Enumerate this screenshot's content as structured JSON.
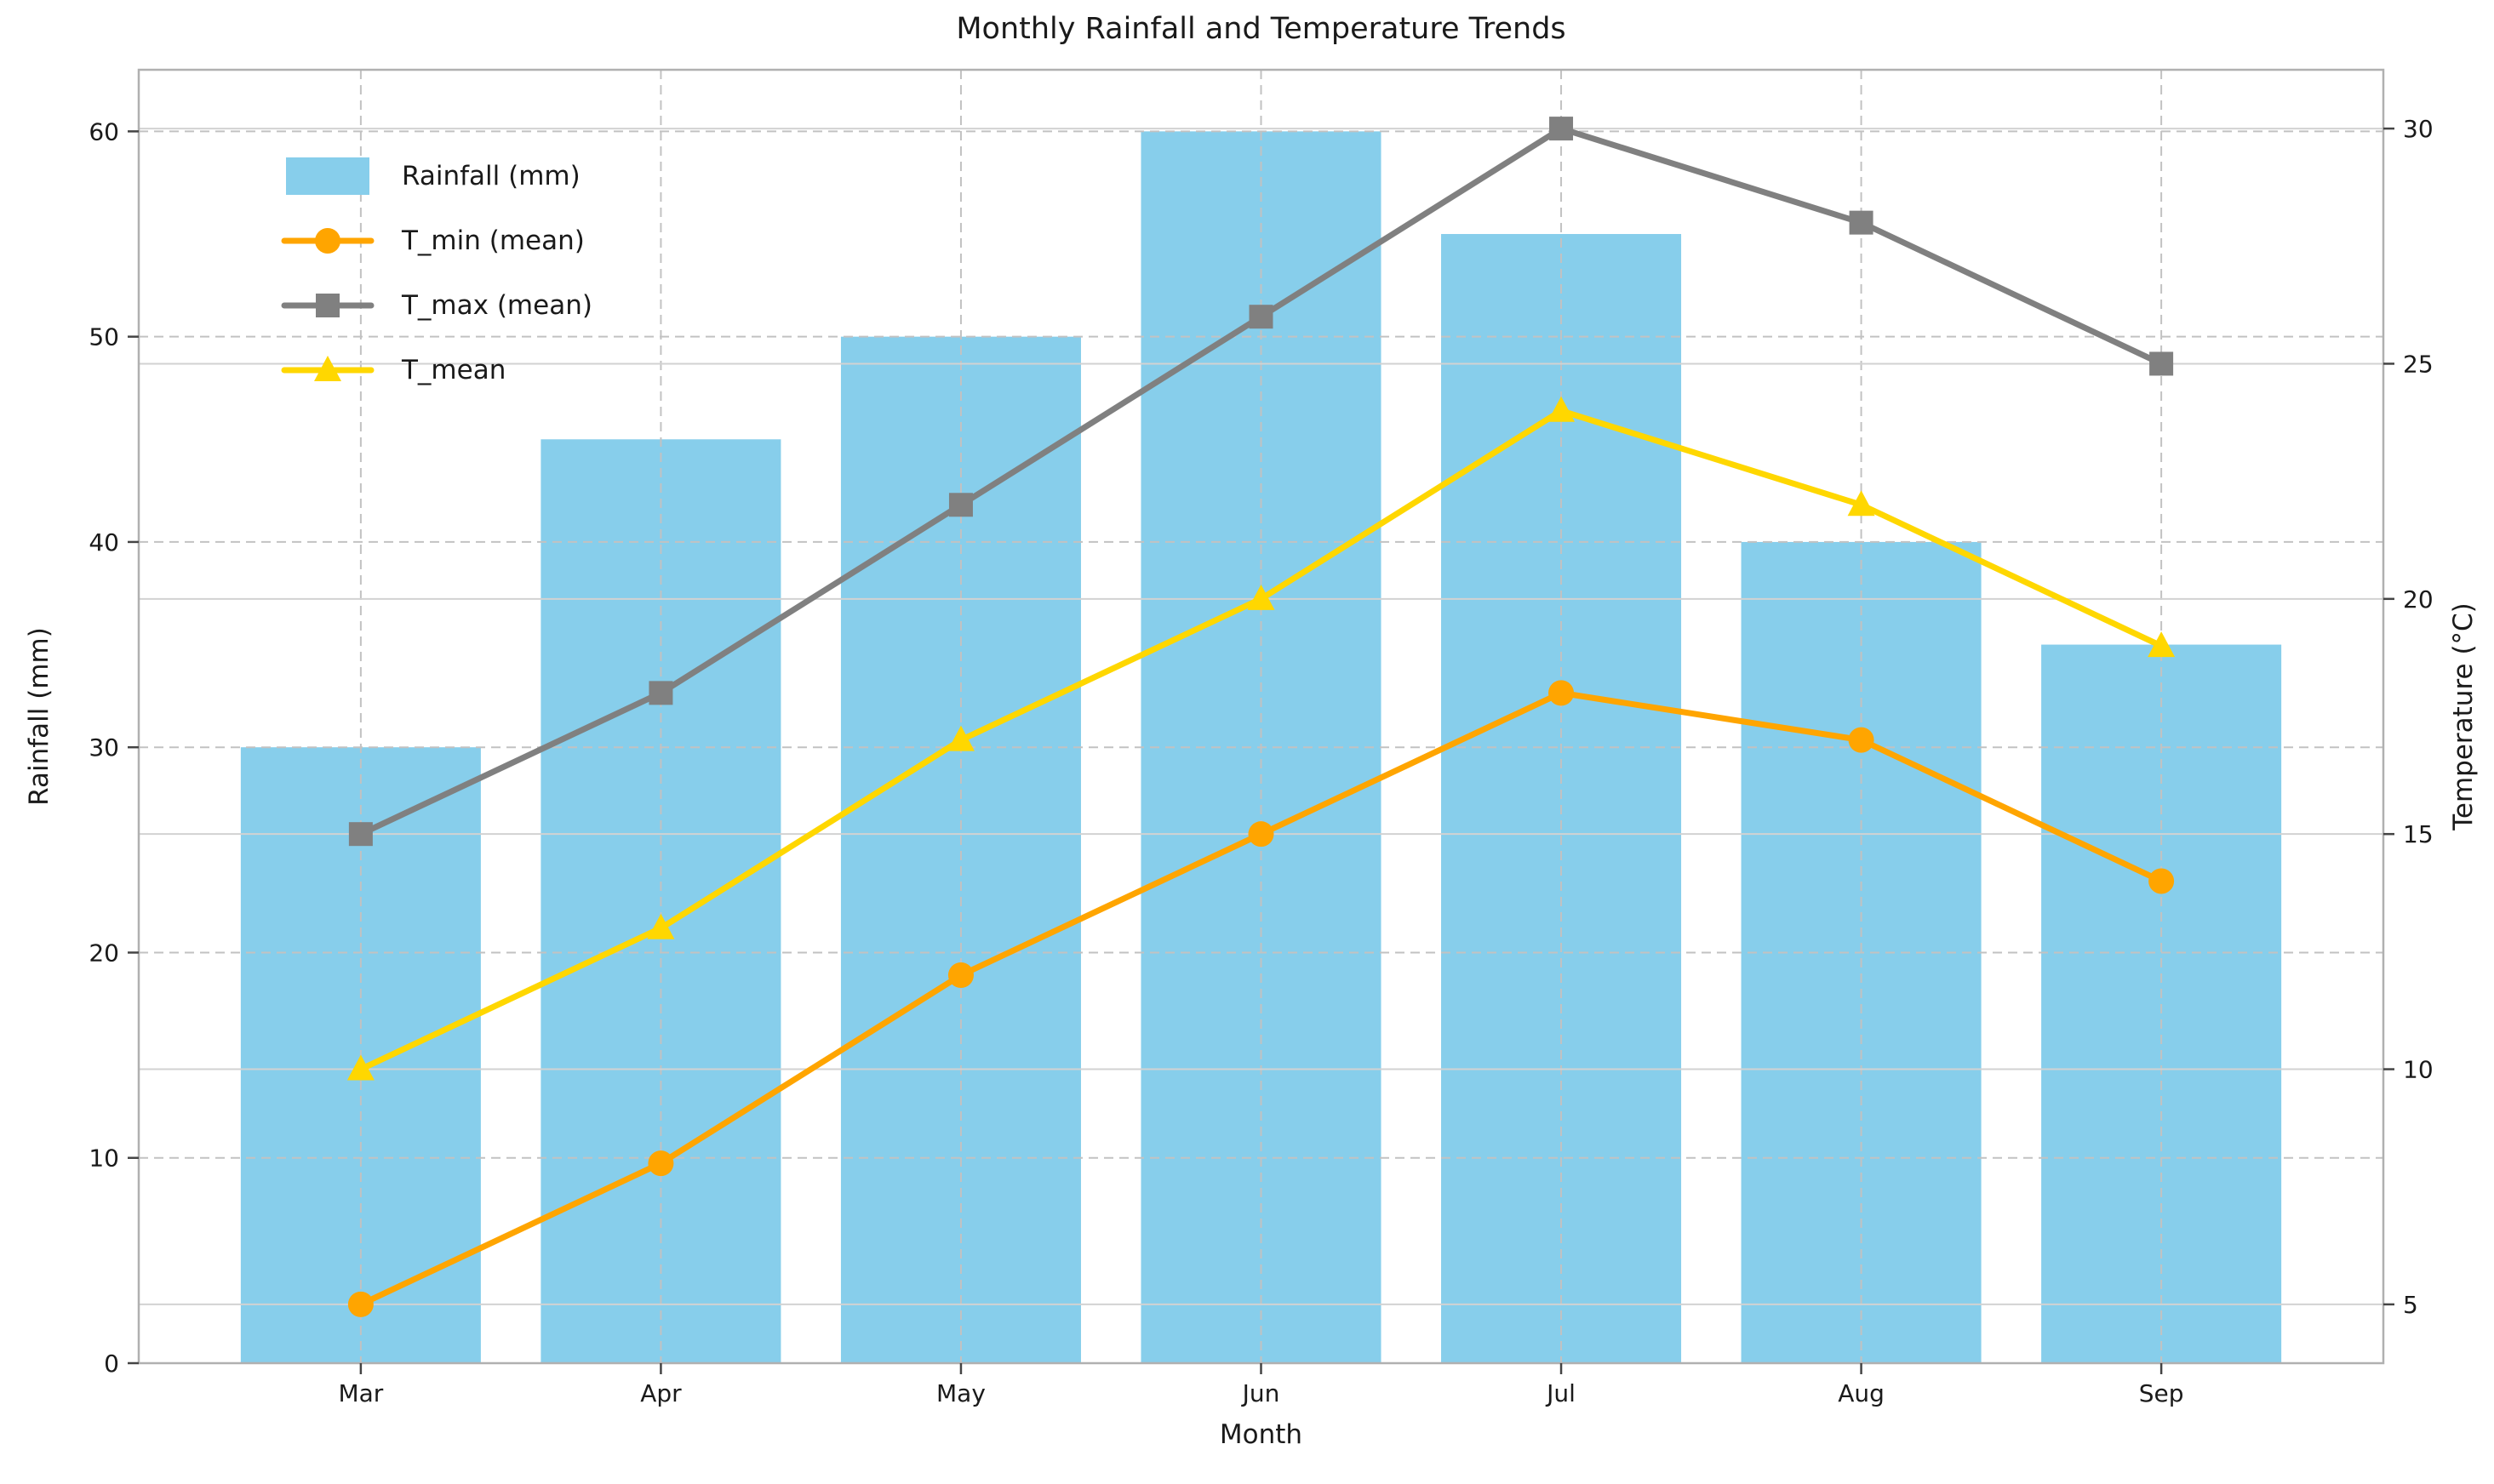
{
  "figure": {
    "background": "#ffffff"
  },
  "chart_data": {
    "type": "combo_bar_line",
    "title": "Monthly Rainfall and Temperature Trends",
    "xlabel": "Month",
    "ylabel_left": "Rainfall (mm)",
    "ylabel_right": "Temperature (°C)",
    "categories": [
      "Mar",
      "Apr",
      "May",
      "Jun",
      "Jul",
      "Aug",
      "Sep"
    ],
    "bar_series": {
      "name": "Rainfall (mm)",
      "values": [
        30,
        45,
        50,
        60,
        55,
        40,
        35
      ],
      "color": "#87CEEB",
      "axis": "left"
    },
    "line_series": [
      {
        "name": "T_min (mean)",
        "values": [
          5,
          8,
          12,
          15,
          18,
          17,
          14
        ],
        "color": "#FFA500",
        "marker": "circle"
      },
      {
        "name": "T_max (mean)",
        "values": [
          15,
          18,
          22,
          26,
          30,
          28,
          25
        ],
        "color": "#808080",
        "marker": "square"
      },
      {
        "name": "T_mean",
        "values": [
          10,
          13,
          17,
          20,
          24,
          22,
          19
        ],
        "color": "#FFD700",
        "marker": "triangle"
      }
    ],
    "left_axis": {
      "ticks": [
        0,
        10,
        20,
        30,
        40,
        50,
        60
      ],
      "range": [
        0,
        63
      ]
    },
    "right_axis": {
      "ticks": [
        5,
        10,
        15,
        20,
        25,
        30
      ],
      "range": [
        3.75,
        31.25
      ]
    },
    "grid": {
      "horizontal_dashed_left_ticks": true,
      "vertical_dashed_categories": true,
      "horizontal_solid_right_ticks": true
    },
    "legend_position": "upper-left",
    "colors": {
      "grid_dashed": "#c2c2c2",
      "grid_solid": "#d2d2d2",
      "spine": "#b0b0b0",
      "tick": "#444444",
      "text": "#1a1a1a"
    }
  }
}
